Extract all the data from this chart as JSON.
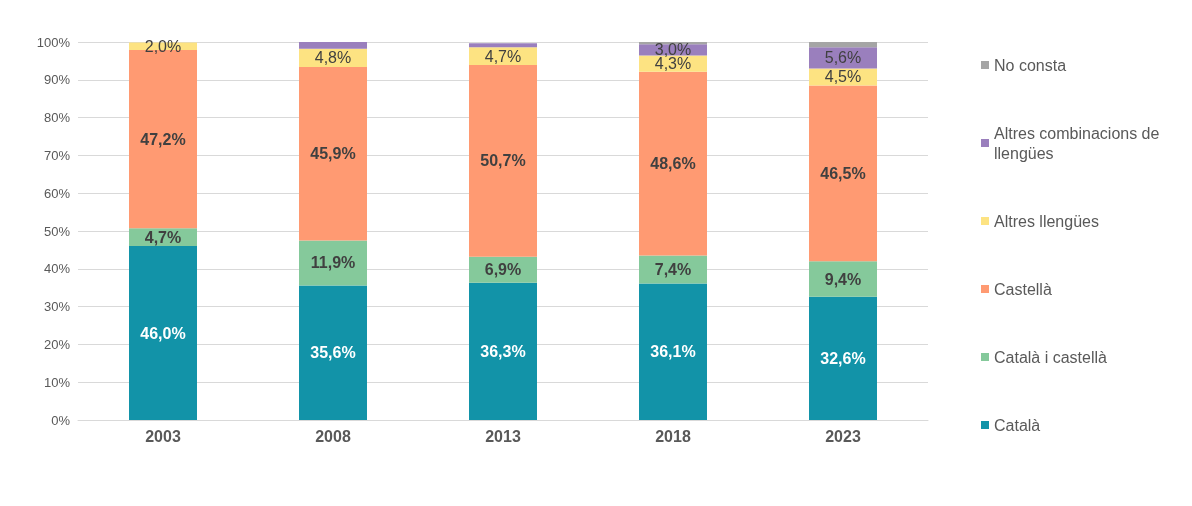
{
  "chart_data": {
    "type": "bar",
    "stacked": true,
    "categories": [
      "2003",
      "2008",
      "2013",
      "2018",
      "2023"
    ],
    "series": [
      {
        "name": "Català",
        "color": "#1293a8",
        "values": [
          46.0,
          35.6,
          36.3,
          36.1,
          32.6
        ],
        "value_labels": [
          "46,0%",
          "35,6%",
          "36,3%",
          "36,1%",
          "32,6%"
        ]
      },
      {
        "name": "Català i castellà",
        "color": "#85c99b",
        "values": [
          4.7,
          11.9,
          6.9,
          7.4,
          9.4
        ],
        "value_labels": [
          "4,7%",
          "11,9%",
          "6,9%",
          "7,4%",
          "9,4%"
        ]
      },
      {
        "name": "Castellà",
        "color": "#ff9a72",
        "values": [
          47.2,
          45.9,
          50.7,
          48.6,
          46.5
        ],
        "value_labels": [
          "47,2%",
          "45,9%",
          "50,7%",
          "48,6%",
          "46,5%"
        ]
      },
      {
        "name": "Altres llengües",
        "color": "#fde382",
        "values": [
          2.0,
          4.8,
          4.7,
          4.3,
          4.5
        ],
        "value_labels": [
          "2,0%",
          "4,8%",
          "4,7%",
          "4,3%",
          "4,5%"
        ]
      },
      {
        "name": "Altres combinacions de llengües",
        "color": "#9a7fbd",
        "values": [
          null,
          1.8,
          1.1,
          3.0,
          5.6
        ],
        "value_labels": [
          null,
          null,
          null,
          "3,0%",
          "5,6%"
        ]
      },
      {
        "name": "No consta",
        "color": "#a5a5a5",
        "values": [
          null,
          null,
          null,
          0.6,
          1.4
        ],
        "value_labels": [
          null,
          null,
          null,
          null,
          null
        ]
      }
    ],
    "ylim": [
      0,
      100
    ],
    "yticks": [
      {
        "value": 0,
        "label": "0%"
      },
      {
        "value": 10,
        "label": "10%"
      },
      {
        "value": 20,
        "label": "20%"
      },
      {
        "value": 30,
        "label": "30%"
      },
      {
        "value": 40,
        "label": "40%"
      },
      {
        "value": 50,
        "label": "50%"
      },
      {
        "value": 60,
        "label": "60%"
      },
      {
        "value": 70,
        "label": "70%"
      },
      {
        "value": 80,
        "label": "80%"
      },
      {
        "value": 90,
        "label": "90%"
      },
      {
        "value": 100,
        "label": "100%"
      }
    ],
    "grid": "y",
    "legend": "right"
  }
}
